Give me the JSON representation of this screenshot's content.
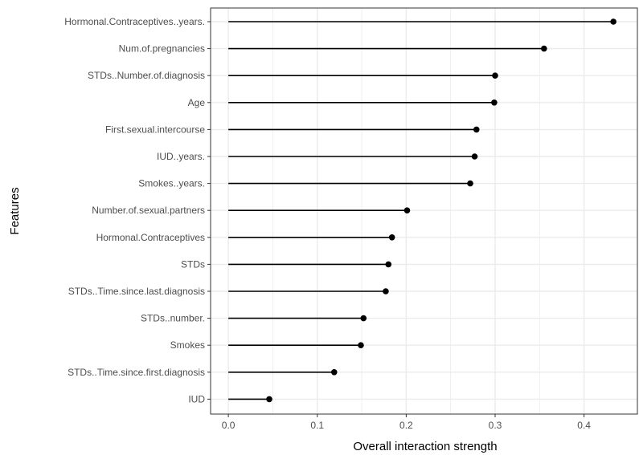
{
  "chart_data": {
    "type": "lollipop",
    "title": "",
    "xlabel": "Overall interaction strength",
    "ylabel": "Features",
    "xlim": [
      -0.02,
      0.46
    ],
    "x_ticks": [
      0.0,
      0.1,
      0.2,
      0.3,
      0.4
    ],
    "x_tick_labels": [
      "0.0",
      "0.1",
      "0.2",
      "0.3",
      "0.4"
    ],
    "grid": true,
    "panel_background": "#ffffff",
    "grid_color": "#ebebeb",
    "panel_border_color": "#333333",
    "mark_color": "#000000",
    "categories": [
      "Hormonal.Contraceptives..years.",
      "Num.of.pregnancies",
      "STDs..Number.of.diagnosis",
      "Age",
      "First.sexual.intercourse",
      "IUD..years.",
      "Smokes..years.",
      "Number.of.sexual.partners",
      "Hormonal.Contraceptives",
      "STDs",
      "STDs..Time.since.last.diagnosis",
      "STDs..number.",
      "Smokes",
      "STDs..Time.since.first.diagnosis",
      "IUD"
    ],
    "values": [
      0.433,
      0.355,
      0.3,
      0.299,
      0.279,
      0.277,
      0.272,
      0.201,
      0.184,
      0.18,
      0.177,
      0.152,
      0.149,
      0.119,
      0.046
    ]
  }
}
